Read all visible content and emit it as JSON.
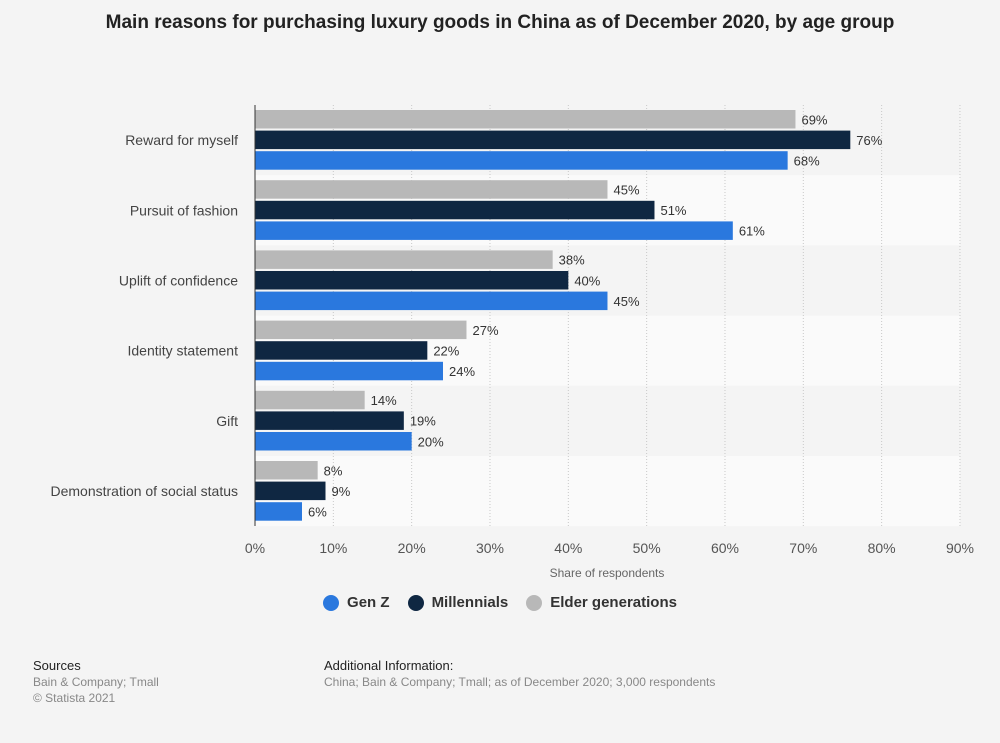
{
  "title": "Main reasons for purchasing luxury goods in China as of December 2020, by age group",
  "chart_data": {
    "type": "bar",
    "orientation": "horizontal",
    "title": "Main reasons for purchasing luxury goods in China as of December 2020, by age group",
    "xlabel": "Share of respondents",
    "ylabel": "",
    "xlim": [
      0,
      90
    ],
    "x_ticks": [
      "0%",
      "10%",
      "20%",
      "30%",
      "40%",
      "50%",
      "60%",
      "70%",
      "80%",
      "90%"
    ],
    "categories": [
      "Reward for myself",
      "Pursuit of fashion",
      "Uplift of confidence",
      "Identity statement",
      "Gift",
      "Demonstration of social status"
    ],
    "series": [
      {
        "name": "Elder generations",
        "color": "#b8b8b8",
        "values": [
          69,
          45,
          38,
          27,
          14,
          8
        ],
        "labels": [
          "69%",
          "45%",
          "38%",
          "27%",
          "14%",
          "8%"
        ]
      },
      {
        "name": "Millennials",
        "color": "#0f2742",
        "values": [
          76,
          51,
          40,
          22,
          19,
          9
        ],
        "labels": [
          "76%",
          "51%",
          "40%",
          "22%",
          "19%",
          "9%"
        ]
      },
      {
        "name": "Gen Z",
        "color": "#2a78de",
        "values": [
          68,
          61,
          45,
          24,
          20,
          6
        ],
        "labels": [
          "68%",
          "61%",
          "45%",
          "24%",
          "20%",
          "6%"
        ]
      }
    ],
    "grid": true
  },
  "legend": [
    {
      "label": "Gen Z",
      "color": "#2a78de"
    },
    {
      "label": "Millennials",
      "color": "#0f2742"
    },
    {
      "label": "Elder generations",
      "color": "#b8b8b8"
    }
  ],
  "sources": {
    "heading": "Sources",
    "line1": "Bain & Company; Tmall",
    "line2": "© Statista 2021"
  },
  "additional_info": {
    "heading": "Additional Information:",
    "text": "China; Bain & Company; Tmall; as of December 2020; 3,000 respondents"
  }
}
